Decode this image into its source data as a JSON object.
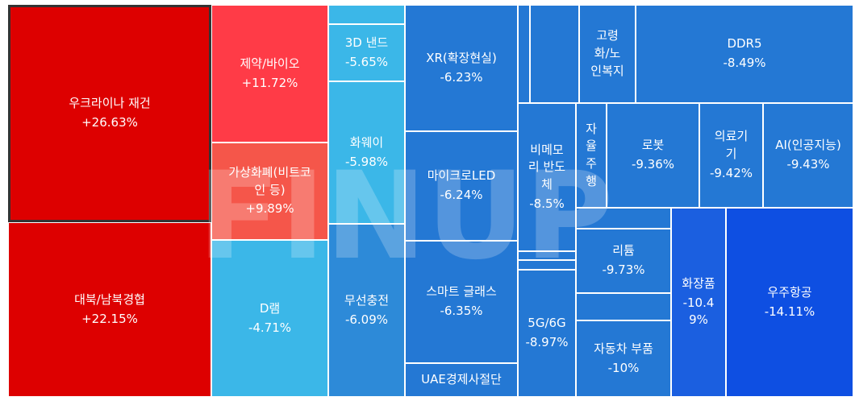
{
  "watermark": "FINUP",
  "colors": {
    "strong_red": "#DD0000",
    "red": "#FF3B47",
    "light_red": "#F5564A",
    "light_blue": "#3BB7E8",
    "mid_blue": "#2D8AD8",
    "blue": "#2478D4",
    "deep_blue": "#1B5FE0",
    "deepest_blue": "#0E4FE2"
  },
  "chart_data": {
    "type": "treemap",
    "title": "",
    "unit": "%",
    "items": [
      {
        "name": "우크라이나 재건",
        "label": "우크라이나 재건",
        "change": "+26.63%",
        "value": 26.63,
        "color": "#DD0000",
        "selected": true
      },
      {
        "name": "대북/남북경협",
        "label": "대북/남북경협",
        "change": "+22.15%",
        "value": 22.15,
        "color": "#DD0000"
      },
      {
        "name": "제약/바이오",
        "label": "제약/바이오",
        "change": "+11.72%",
        "value": 11.72,
        "color": "#FF3B47"
      },
      {
        "name": "가상화폐(비트코인 등)",
        "label": "가상화폐(비트코\n인 등)",
        "change": "+9.89%",
        "value": 9.89,
        "color": "#F5564A"
      },
      {
        "name": "D램",
        "label": "D램",
        "change": "-4.71%",
        "value": -4.71,
        "color": "#3BB7E8"
      },
      {
        "name": "unlabeled-1",
        "label": "",
        "change": "",
        "value": null,
        "color": "#3BB7E8"
      },
      {
        "name": "3D 낸드",
        "label": "3D 낸드",
        "change": "-5.65%",
        "value": -5.65,
        "color": "#3BB7E8"
      },
      {
        "name": "화웨이",
        "label": "화웨이",
        "change": "-5.98%",
        "value": -5.98,
        "color": "#3BB7E8"
      },
      {
        "name": "무선충전",
        "label": "무선충전",
        "change": "-6.09%",
        "value": -6.09,
        "color": "#2D8AD8"
      },
      {
        "name": "XR(확장현실)",
        "label": "XR(확장현실)",
        "change": "-6.23%",
        "value": -6.23,
        "color": "#2478D4"
      },
      {
        "name": "마이크로LED",
        "label": "마이크로LED",
        "change": "-6.24%",
        "value": -6.24,
        "color": "#2478D4"
      },
      {
        "name": "스마트 글래스",
        "label": "스마트 글래스",
        "change": "-6.35%",
        "value": -6.35,
        "color": "#2478D4"
      },
      {
        "name": "UAE경제사절단",
        "label": "UAE경제사절단",
        "change": "",
        "value": null,
        "color": "#2478D4"
      },
      {
        "name": "unlabeled-2",
        "label": "",
        "change": "",
        "value": null,
        "color": "#2478D4"
      },
      {
        "name": "unlabeled-3",
        "label": "",
        "change": "",
        "value": null,
        "color": "#2478D4"
      },
      {
        "name": "비메모리 반도체",
        "label": "비메모\n리 반도\n체",
        "change": "-8.5%",
        "value": -8.5,
        "color": "#2478D4"
      },
      {
        "name": "unlabeled-4",
        "label": "",
        "change": "",
        "value": null,
        "color": "#2478D4"
      },
      {
        "name": "unlabeled-5",
        "label": "",
        "change": "",
        "value": null,
        "color": "#2478D4"
      },
      {
        "name": "5G/6G",
        "label": "5G/6G",
        "change": "-8.97%",
        "value": -8.97,
        "color": "#2478D4"
      },
      {
        "name": "고령화/노인복지",
        "label": "고령\n화/노\n인복지",
        "change": "",
        "value": null,
        "color": "#2478D4"
      },
      {
        "name": "DDR5",
        "label": "DDR5",
        "change": "-8.49%",
        "value": -8.49,
        "color": "#2478D4"
      },
      {
        "name": "자율주행",
        "label": "자\n율\n주\n행",
        "change": "",
        "value": null,
        "color": "#2478D4"
      },
      {
        "name": "로봇",
        "label": "로봇",
        "change": "-9.36%",
        "value": -9.36,
        "color": "#2478D4"
      },
      {
        "name": "의료기기",
        "label": "의료기\n기",
        "change": "-9.42%",
        "value": -9.42,
        "color": "#2478D4"
      },
      {
        "name": "AI(인공지능)",
        "label": "AI(인공지능)",
        "change": "-9.43%",
        "value": -9.43,
        "color": "#2478D4"
      },
      {
        "name": "unlabeled-6",
        "label": "",
        "change": "",
        "value": null,
        "color": "#2478D4"
      },
      {
        "name": "리튬",
        "label": "리튬",
        "change": "-9.73%",
        "value": -9.73,
        "color": "#2478D4"
      },
      {
        "name": "unlabeled-7",
        "label": "",
        "change": "",
        "value": null,
        "color": "#2478D4"
      },
      {
        "name": "자동차 부품",
        "label": "자동차 부품",
        "change": "-10%",
        "value": -10.0,
        "color": "#2478D4"
      },
      {
        "name": "화장품",
        "label": "화장품",
        "change": "-10.4\n9%",
        "value": -10.49,
        "color": "#1B5FE0"
      },
      {
        "name": "우주항공",
        "label": "우주항공",
        "change": "-14.11%",
        "value": -14.11,
        "color": "#0E4FE2"
      }
    ]
  }
}
